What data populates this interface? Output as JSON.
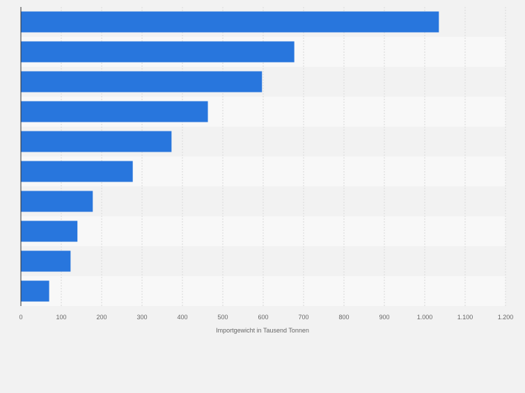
{
  "chart_data": {
    "type": "bar",
    "orientation": "horizontal",
    "categories": [
      "",
      "",
      "",
      "",
      "",
      "",
      "",
      "",
      "",
      ""
    ],
    "values": [
      1035,
      677,
      597,
      463,
      373,
      277,
      178,
      140,
      123,
      70
    ],
    "xlabel": "Importgewicht in Tausend Tonnen",
    "ylabel": "",
    "xlim": [
      0,
      1200
    ],
    "xticks": [
      0,
      100,
      200,
      300,
      400,
      500,
      600,
      700,
      800,
      900,
      1000,
      1100,
      1200
    ],
    "xtick_labels": [
      "0",
      "100",
      "200",
      "300",
      "400",
      "500",
      "600",
      "700",
      "800",
      "900",
      "1.000",
      "1.100",
      "1.200"
    ],
    "grid": "vertical",
    "legend": "none",
    "colors": {
      "bar": "#2876dd",
      "page_background": "#f2f2f2",
      "band_light": "#f8f8f8",
      "band_dark": "#f2f2f2",
      "gridline": "#d9d9d9",
      "axis": "#333333",
      "tick_label": "#666666"
    }
  }
}
